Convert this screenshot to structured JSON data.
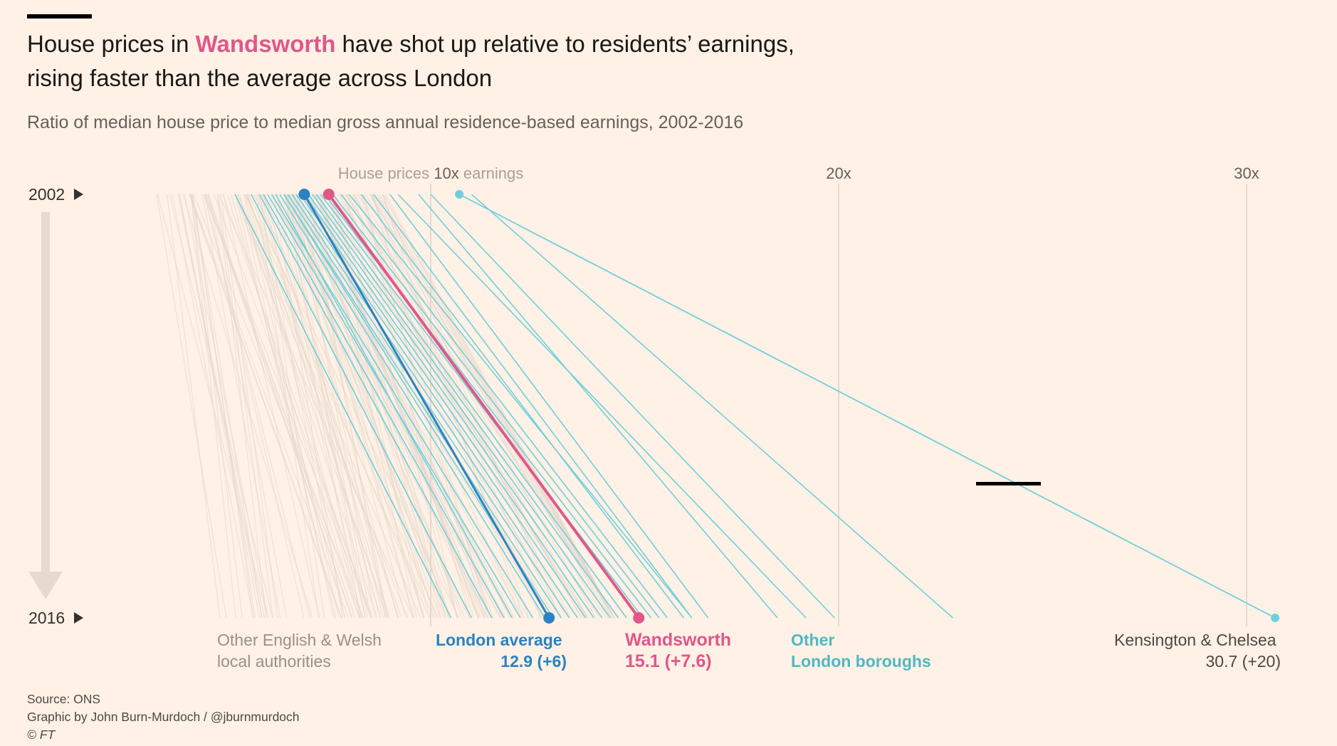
{
  "header": {
    "title_pre": "House prices in ",
    "title_highlight": "Wandsworth",
    "title_post": " have shot up relative to residents’ earnings,",
    "title_line2": "rising faster than the average across London",
    "subtitle": "Ratio of median house price to median gross annual residence-based earnings, 2002-2016"
  },
  "colors": {
    "background": "#fff1e5",
    "wandsworth": "#e0578a",
    "london_average": "#2b82c2",
    "other_london": "#6fd0dc",
    "other_england_wales": "#e3d6cc",
    "gridline": "#e6d9ce"
  },
  "chart_data": {
    "type": "line",
    "title": "House prices in Wandsworth have shot up relative to residents’ earnings, rising faster than the average across London",
    "subtitle": "Ratio of median house price to median gross annual residence-based earnings, 2002-2016",
    "years": [
      "2002",
      "2016"
    ],
    "x_axis": {
      "min": 0,
      "max": 31,
      "ticks": [
        {
          "value": 10,
          "label_pre": "House prices ",
          "label_main": "10x",
          "label_post": " earnings"
        },
        {
          "value": 20,
          "label_pre": "",
          "label_main": "20x",
          "label_post": ""
        },
        {
          "value": 30,
          "label_pre": "",
          "label_main": "30x",
          "label_post": ""
        }
      ]
    },
    "highlighted": [
      {
        "name": "Wandsworth",
        "start": 7.5,
        "end": 15.1,
        "label": "15.1 (+7.6)"
      },
      {
        "name": "London average",
        "start": 6.9,
        "end": 12.9,
        "label": "12.9 (+6)"
      },
      {
        "name": "Kensington & Chelsea",
        "start": 10.7,
        "end": 30.7,
        "label": "30.7 (+20)"
      }
    ],
    "other_london_boroughs": [
      {
        "start": 5.2,
        "end": 10.5
      },
      {
        "start": 5.6,
        "end": 11.0
      },
      {
        "start": 5.8,
        "end": 11.5
      },
      {
        "start": 5.9,
        "end": 11.8
      },
      {
        "start": 6.0,
        "end": 12.2
      },
      {
        "start": 6.1,
        "end": 12.5
      },
      {
        "start": 6.2,
        "end": 12.0
      },
      {
        "start": 6.3,
        "end": 12.8
      },
      {
        "start": 6.4,
        "end": 13.0
      },
      {
        "start": 6.4,
        "end": 13.2
      },
      {
        "start": 6.5,
        "end": 13.4
      },
      {
        "start": 6.6,
        "end": 13.6
      },
      {
        "start": 6.7,
        "end": 13.8
      },
      {
        "start": 6.8,
        "end": 14.0
      },
      {
        "start": 6.9,
        "end": 14.2
      },
      {
        "start": 7.0,
        "end": 14.4
      },
      {
        "start": 7.1,
        "end": 14.6
      },
      {
        "start": 7.2,
        "end": 14.8
      },
      {
        "start": 7.3,
        "end": 15.2
      },
      {
        "start": 7.4,
        "end": 15.4
      },
      {
        "start": 7.6,
        "end": 15.6
      },
      {
        "start": 7.8,
        "end": 15.8
      },
      {
        "start": 8.0,
        "end": 16.4
      },
      {
        "start": 8.3,
        "end": 16.2
      },
      {
        "start": 8.6,
        "end": 16.4
      },
      {
        "start": 9.0,
        "end": 16.8
      },
      {
        "start": 9.7,
        "end": 18.5
      },
      {
        "start": 9.2,
        "end": 19.2
      },
      {
        "start": 10.0,
        "end": 19.9
      },
      {
        "start": 11.0,
        "end": 22.8
      }
    ],
    "other_english_welsh_count": 160,
    "other_english_welsh_start_range": [
      3.1,
      9.0
    ],
    "other_english_welsh_end_range": [
      4.3,
      14.5
    ],
    "labels": {
      "other_ew_line1": "Other English & Welsh",
      "other_ew_line2": "local authorities",
      "london_avg_line1": "London average",
      "london_avg_line2": "12.9 (+6)",
      "wandsworth_line1": "Wandsworth",
      "wandsworth_line2": "15.1 (+7.6)",
      "other_london_line1": "Other",
      "other_london_line2": "London boroughs",
      "kc_line1": "Kensington & Chelsea",
      "kc_line2": "30.7 (+20)"
    }
  },
  "footer": {
    "source": "Source: ONS",
    "credit": "Graphic by John Burn-Murdoch / @jburnmurdoch",
    "copyright": "© FT"
  }
}
